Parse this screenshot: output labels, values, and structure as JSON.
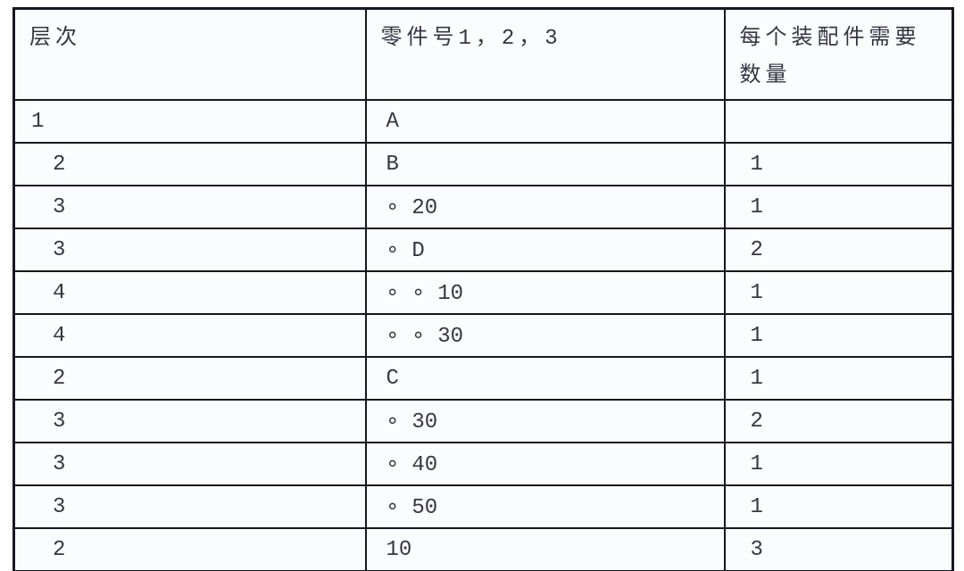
{
  "table": {
    "headers": {
      "level": "层次",
      "part": "零件号1，2，3",
      "qty_line1": "每个装配件需要",
      "qty_line2": "数量"
    },
    "rows": [
      {
        "level": "1",
        "part": "A",
        "qty": ""
      },
      {
        "level": "2",
        "part": "B",
        "qty": "1"
      },
      {
        "level": "3",
        "part": "∘ 20",
        "qty": "1"
      },
      {
        "level": "3",
        "part": "∘ D",
        "qty": "2"
      },
      {
        "level": "4",
        "part": "∘ ∘ 10",
        "qty": "1"
      },
      {
        "level": "4",
        "part": "∘ ∘ 30",
        "qty": "1"
      },
      {
        "level": "2",
        "part": "C",
        "qty": "1"
      },
      {
        "level": "3",
        "part": "∘ 30",
        "qty": "2"
      },
      {
        "level": "3",
        "part": "∘ 40",
        "qty": "1"
      },
      {
        "level": "3",
        "part": "∘ 50",
        "qty": "1"
      },
      {
        "level": "2",
        "part": "10",
        "qty": "3"
      }
    ],
    "colors": {
      "border": "#16171f",
      "text": "#343743",
      "cell_background": "#fbfcfe"
    }
  }
}
